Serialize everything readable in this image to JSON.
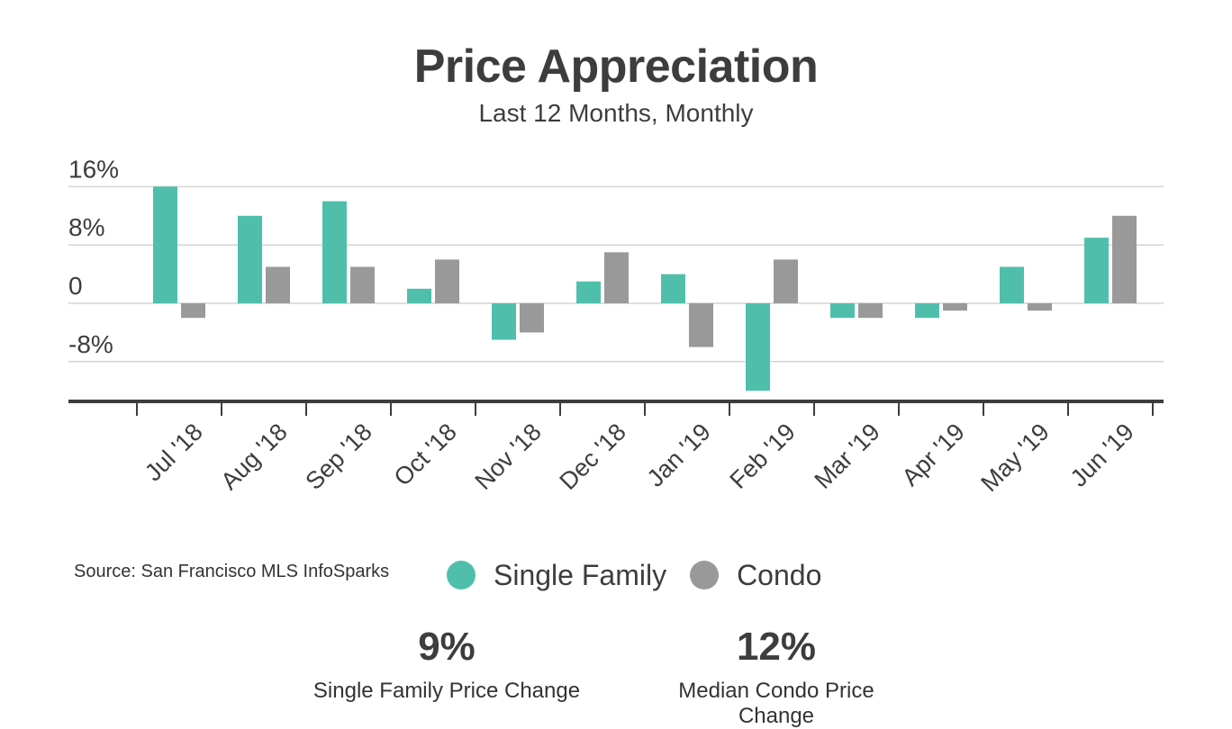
{
  "chart_data": {
    "type": "bar",
    "title": "Price Appreciation",
    "subtitle": "Last 12 Months, Monthly",
    "categories": [
      "Jul '18",
      "Aug '18",
      "Sep '18",
      "Oct '18",
      "Nov '18",
      "Dec '18",
      "Jan '19",
      "Feb '19",
      "Mar '19",
      "Apr '19",
      "May '19",
      "Jun '19"
    ],
    "series": [
      {
        "name": "Single Family",
        "color": "#4fbfab",
        "values": [
          16,
          12,
          14,
          2,
          -5,
          3,
          4,
          -12,
          -2,
          -2,
          5,
          9
        ]
      },
      {
        "name": "Condo",
        "color": "#999999",
        "values": [
          -2,
          5,
          5,
          6,
          -4,
          7,
          -6,
          6,
          -2,
          -1,
          -1,
          12
        ]
      }
    ],
    "y_ticks": [
      {
        "value": 16,
        "label": "16%"
      },
      {
        "value": 8,
        "label": "8%"
      },
      {
        "value": 0,
        "label": "0"
      },
      {
        "value": -8,
        "label": "-8%"
      }
    ],
    "ylim": [
      -13.5,
      16
    ],
    "grid": true,
    "legend_position": "bottom"
  },
  "source": "Source:  San Francisco MLS InfoSparks",
  "legend": [
    {
      "label": "Single Family",
      "color": "#4fbfab"
    },
    {
      "label": "Condo",
      "color": "#999999"
    }
  ],
  "stats": {
    "single_family": {
      "value": "9%",
      "label": "Single Family Price Change"
    },
    "condo": {
      "value": "12%",
      "label": "Median Condo Price Change"
    }
  }
}
